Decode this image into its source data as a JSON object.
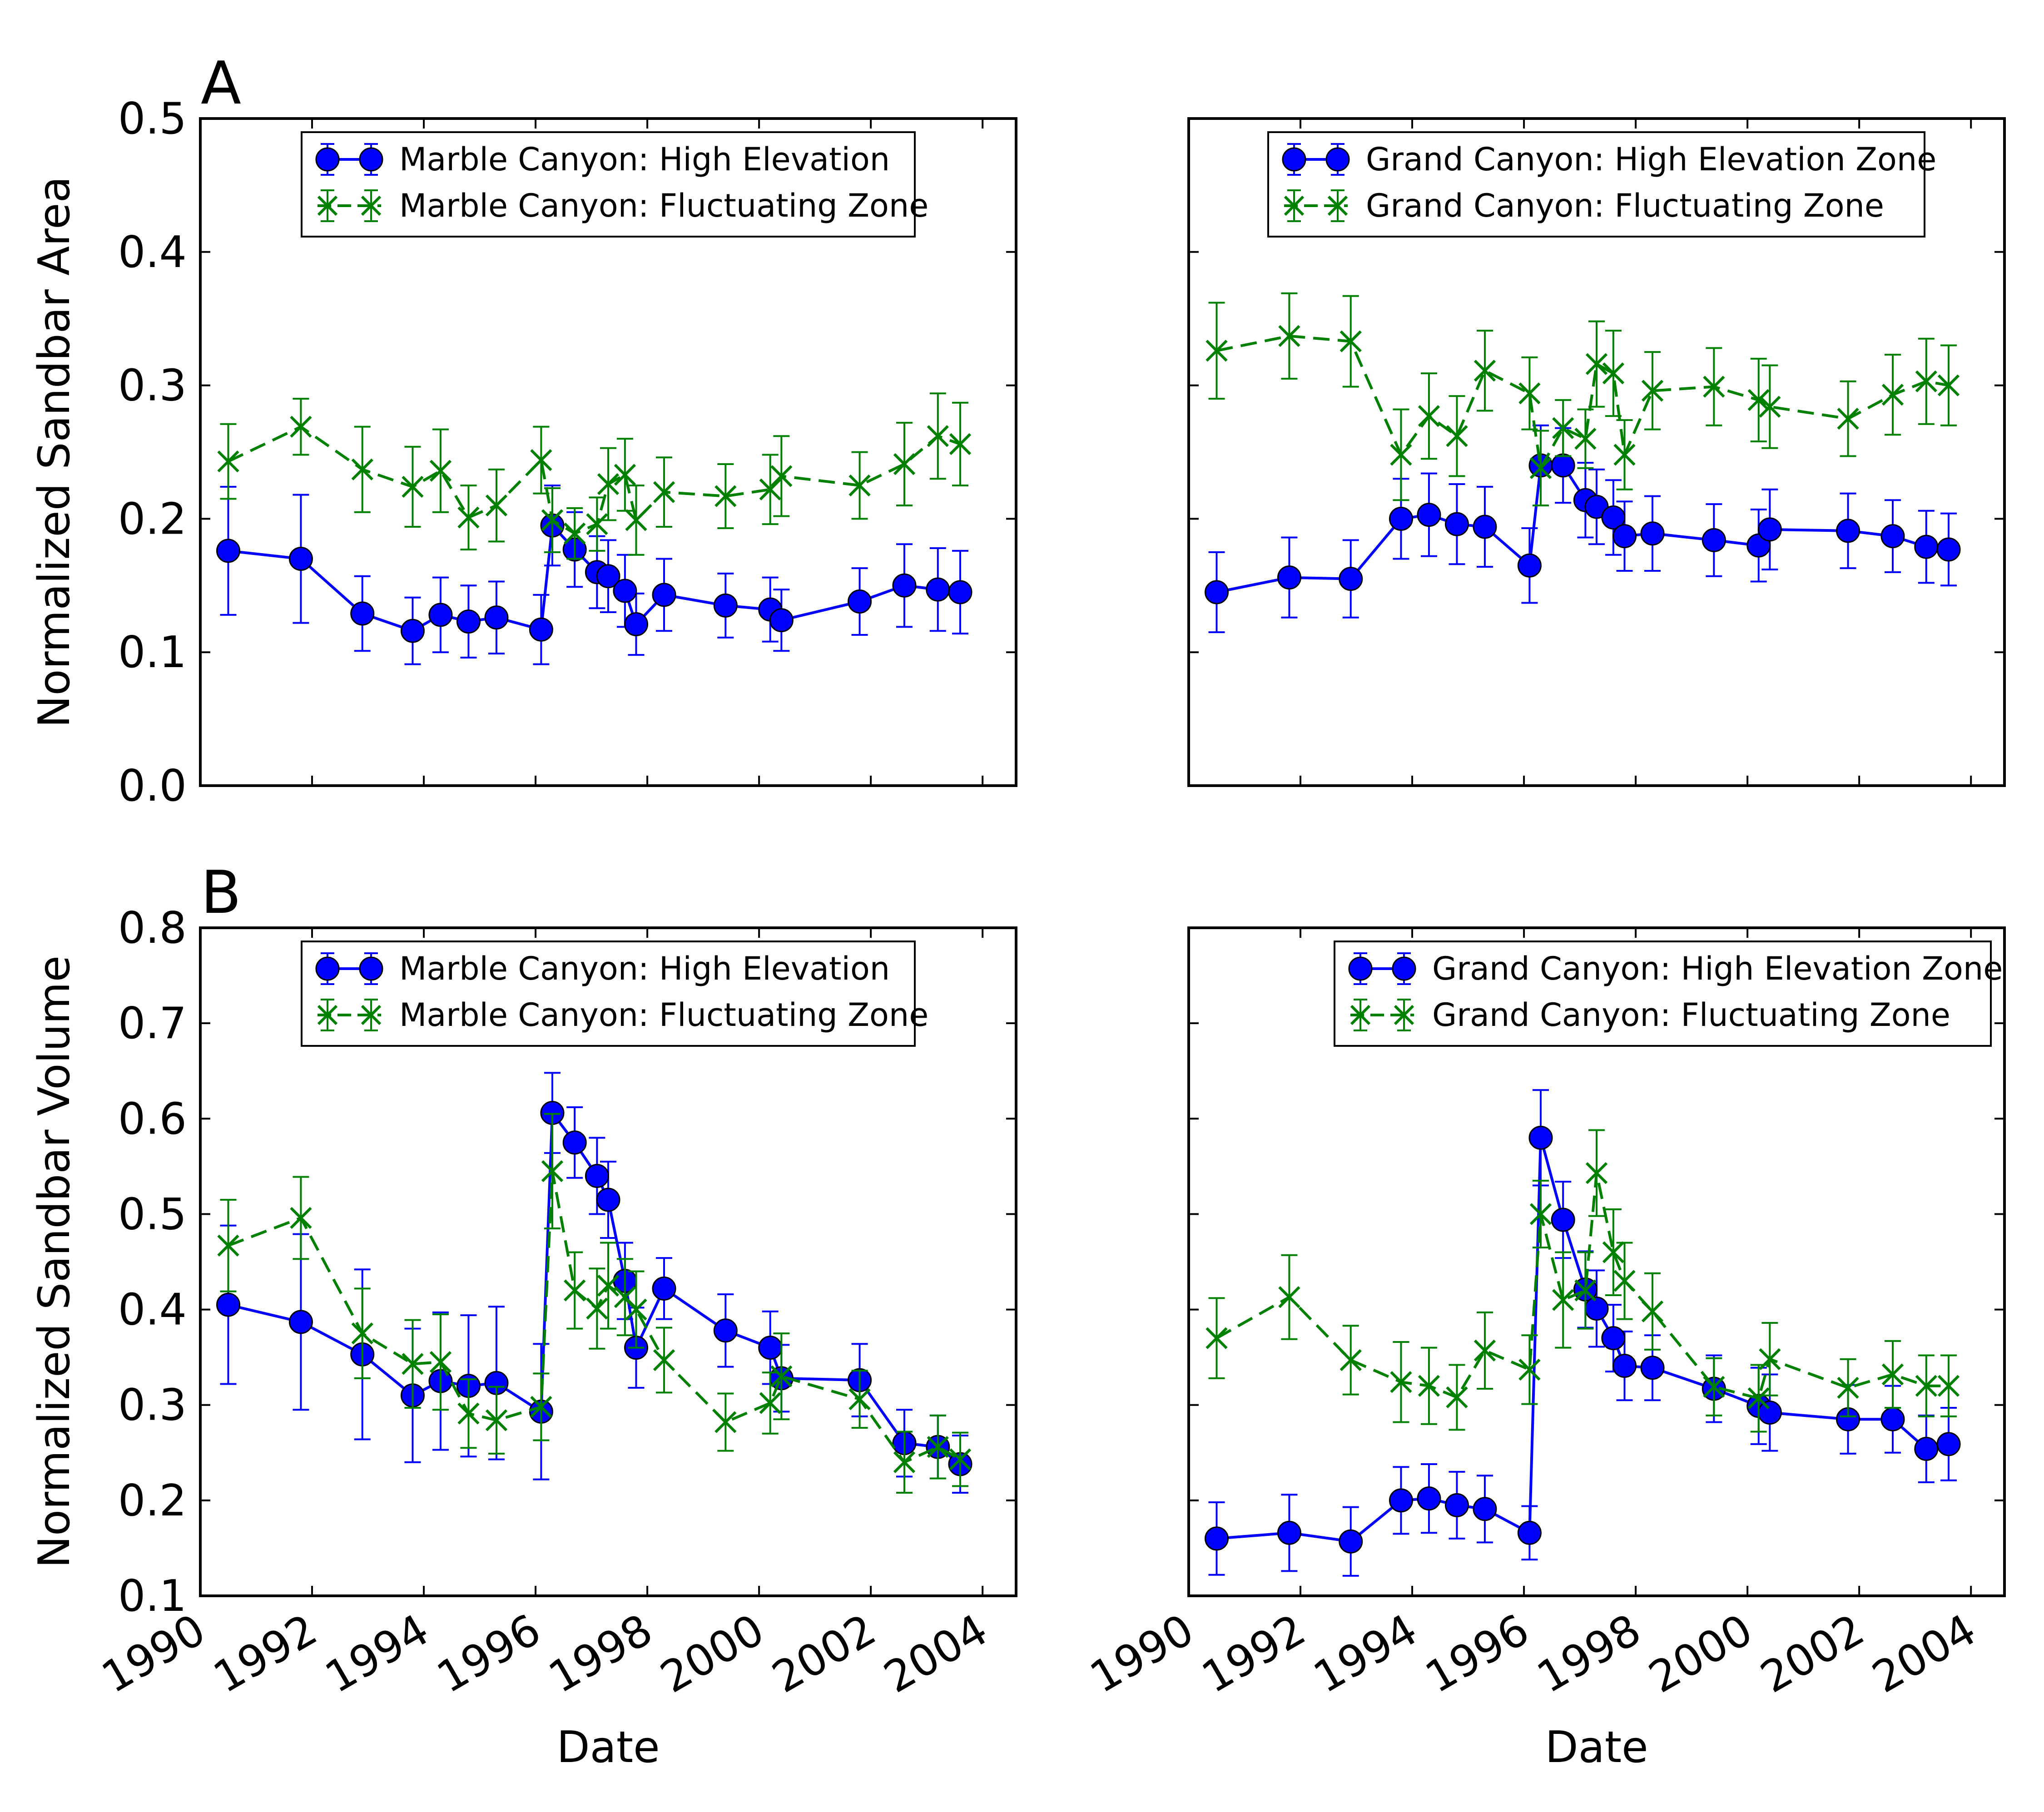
{
  "figure": {
    "panel_labels": [
      "A",
      "B"
    ],
    "xlabel": "Date"
  },
  "colors": {
    "high": "#0000ff",
    "fluct": "#008000"
  },
  "chart_data": [
    {
      "type": "line",
      "panel": "A",
      "title": "",
      "xlabel": "",
      "ylabel": "Normalized Sandbar Area",
      "xlim": [
        1990,
        2004.6
      ],
      "ylim": [
        0.0,
        0.5
      ],
      "yticks": [
        "0.0",
        "0.1",
        "0.2",
        "0.3",
        "0.4",
        "0.5"
      ],
      "xticks": [],
      "legend": "top-center",
      "series": [
        {
          "name": "Marble Canyon: High Elevation",
          "style": "high",
          "x": [
            1990.5,
            1991.8,
            1992.9,
            1993.8,
            1994.3,
            1994.8,
            1995.3,
            1996.1,
            1996.3,
            1996.7,
            1997.1,
            1997.3,
            1997.6,
            1997.8,
            1998.3,
            1999.4,
            2000.2,
            2000.4,
            2001.8,
            2002.6,
            2003.2,
            2003.6
          ],
          "y": [
            0.176,
            0.17,
            0.129,
            0.116,
            0.128,
            0.123,
            0.126,
            0.117,
            0.195,
            0.177,
            0.16,
            0.157,
            0.146,
            0.121,
            0.143,
            0.135,
            0.132,
            0.124,
            0.138,
            0.15,
            0.147,
            0.145
          ],
          "err": [
            0.048,
            0.048,
            0.028,
            0.025,
            0.028,
            0.027,
            0.027,
            0.026,
            0.03,
            0.028,
            0.027,
            0.027,
            0.027,
            0.023,
            0.027,
            0.024,
            0.024,
            0.023,
            0.025,
            0.031,
            0.031,
            0.031
          ]
        },
        {
          "name": "Marble Canyon: Fluctuating Zone",
          "style": "fluct",
          "x": [
            1990.5,
            1991.8,
            1992.9,
            1993.8,
            1994.3,
            1994.8,
            1995.3,
            1996.1,
            1996.3,
            1996.7,
            1997.1,
            1997.3,
            1997.6,
            1997.8,
            1998.3,
            1999.4,
            2000.2,
            2000.4,
            2001.8,
            2002.6,
            2003.2,
            2003.6
          ],
          "y": [
            0.243,
            0.269,
            0.237,
            0.224,
            0.236,
            0.201,
            0.21,
            0.244,
            0.199,
            0.189,
            0.196,
            0.226,
            0.233,
            0.199,
            0.22,
            0.217,
            0.222,
            0.232,
            0.225,
            0.241,
            0.262,
            0.256
          ],
          "err": [
            0.028,
            0.021,
            0.032,
            0.03,
            0.031,
            0.024,
            0.027,
            0.025,
            0.024,
            0.019,
            0.02,
            0.027,
            0.027,
            0.026,
            0.026,
            0.024,
            0.026,
            0.03,
            0.025,
            0.031,
            0.032,
            0.031
          ]
        }
      ]
    },
    {
      "type": "line",
      "panel": "A-right",
      "title": "",
      "xlabel": "",
      "ylabel": "",
      "xlim": [
        1990,
        2004.6
      ],
      "ylim": [
        0.0,
        0.5
      ],
      "yticks": [],
      "xticks": [],
      "legend": "top-center",
      "series": [
        {
          "name": "Grand Canyon: High Elevation Zone",
          "style": "high",
          "x": [
            1990.5,
            1991.8,
            1992.9,
            1993.8,
            1994.3,
            1994.8,
            1995.3,
            1996.1,
            1996.3,
            1996.7,
            1997.1,
            1997.3,
            1997.6,
            1997.8,
            1998.3,
            1999.4,
            2000.2,
            2000.4,
            2001.8,
            2002.6,
            2003.2,
            2003.6
          ],
          "y": [
            0.145,
            0.156,
            0.155,
            0.2,
            0.203,
            0.196,
            0.194,
            0.165,
            0.24,
            0.24,
            0.214,
            0.209,
            0.201,
            0.187,
            0.189,
            0.184,
            0.18,
            0.192,
            0.191,
            0.187,
            0.179,
            0.177
          ],
          "err": [
            0.03,
            0.03,
            0.029,
            0.03,
            0.031,
            0.03,
            0.03,
            0.028,
            0.03,
            0.028,
            0.028,
            0.028,
            0.028,
            0.026,
            0.028,
            0.027,
            0.027,
            0.03,
            0.028,
            0.027,
            0.027,
            0.027
          ]
        },
        {
          "name": "Grand Canyon: Fluctuating Zone",
          "style": "fluct",
          "x": [
            1990.5,
            1991.8,
            1992.9,
            1993.8,
            1994.3,
            1994.8,
            1995.3,
            1996.1,
            1996.3,
            1996.7,
            1997.1,
            1997.3,
            1997.6,
            1997.8,
            1998.3,
            1999.4,
            2000.2,
            2000.4,
            2001.8,
            2002.6,
            2003.2,
            2003.6
          ],
          "y": [
            0.326,
            0.337,
            0.333,
            0.248,
            0.277,
            0.262,
            0.311,
            0.294,
            0.238,
            0.268,
            0.26,
            0.316,
            0.309,
            0.248,
            0.296,
            0.299,
            0.289,
            0.284,
            0.275,
            0.293,
            0.303,
            0.3
          ],
          "err": [
            0.036,
            0.032,
            0.034,
            0.034,
            0.032,
            0.03,
            0.03,
            0.027,
            0.028,
            0.021,
            0.022,
            0.032,
            0.032,
            0.026,
            0.029,
            0.029,
            0.031,
            0.031,
            0.028,
            0.03,
            0.032,
            0.03
          ]
        }
      ]
    },
    {
      "type": "line",
      "panel": "B",
      "title": "",
      "xlabel": "Date",
      "ylabel": "Normalized Sandbar Volume",
      "xlim": [
        1990,
        2004.6
      ],
      "ylim": [
        0.1,
        0.8
      ],
      "yticks": [
        "0.1",
        "0.2",
        "0.3",
        "0.4",
        "0.5",
        "0.6",
        "0.7",
        "0.8"
      ],
      "xticks": [
        "1990",
        "1992",
        "1994",
        "1996",
        "1998",
        "2000",
        "2002",
        "2004"
      ],
      "legend": "top-center",
      "series": [
        {
          "name": "Marble Canyon: High Elevation",
          "style": "high",
          "x": [
            1990.5,
            1991.8,
            1992.9,
            1993.8,
            1994.3,
            1994.8,
            1995.3,
            1996.1,
            1996.3,
            1996.7,
            1997.1,
            1997.3,
            1997.6,
            1997.8,
            1998.3,
            1999.4,
            2000.2,
            2000.4,
            2001.8,
            2002.6,
            2003.2,
            2003.6
          ],
          "y": [
            0.405,
            0.387,
            0.353,
            0.31,
            0.325,
            0.32,
            0.323,
            0.293,
            0.606,
            0.575,
            0.54,
            0.515,
            0.43,
            0.36,
            0.422,
            0.378,
            0.36,
            0.328,
            0.326,
            0.26,
            0.256,
            0.238
          ],
          "err": [
            0.083,
            0.092,
            0.089,
            0.07,
            0.072,
            0.074,
            0.08,
            0.071,
            0.042,
            0.037,
            0.04,
            0.04,
            0.04,
            0.042,
            0.032,
            0.038,
            0.038,
            0.035,
            0.038,
            0.035,
            0.033,
            0.03
          ]
        },
        {
          "name": "Marble Canyon: Fluctuating Zone",
          "style": "fluct",
          "x": [
            1990.5,
            1991.8,
            1992.9,
            1993.8,
            1994.3,
            1994.8,
            1995.3,
            1996.1,
            1996.3,
            1996.7,
            1997.1,
            1997.3,
            1997.6,
            1997.8,
            1998.3,
            1999.4,
            2000.2,
            2000.4,
            2001.8,
            2002.6,
            2003.2,
            2003.6
          ],
          "y": [
            0.467,
            0.496,
            0.375,
            0.343,
            0.345,
            0.291,
            0.284,
            0.298,
            0.545,
            0.42,
            0.401,
            0.425,
            0.413,
            0.4,
            0.347,
            0.282,
            0.302,
            0.33,
            0.306,
            0.24,
            0.256,
            0.243
          ],
          "err": [
            0.048,
            0.043,
            0.047,
            0.046,
            0.05,
            0.036,
            0.035,
            0.035,
            0.06,
            0.04,
            0.042,
            0.045,
            0.04,
            0.04,
            0.034,
            0.03,
            0.032,
            0.045,
            0.03,
            0.032,
            0.033,
            0.028
          ]
        }
      ]
    },
    {
      "type": "line",
      "panel": "B-right",
      "title": "",
      "xlabel": "Date",
      "ylabel": "",
      "xlim": [
        1990,
        2004.6
      ],
      "ylim": [
        0.1,
        0.8
      ],
      "yticks": [],
      "xticks": [
        "1990",
        "1992",
        "1994",
        "1996",
        "1998",
        "2000",
        "2002",
        "2004"
      ],
      "legend": "top-right",
      "series": [
        {
          "name": "Grand Canyon: High Elevation Zone",
          "style": "high",
          "x": [
            1990.5,
            1991.8,
            1992.9,
            1993.8,
            1994.3,
            1994.8,
            1995.3,
            1996.1,
            1996.3,
            1996.7,
            1997.1,
            1997.3,
            1997.6,
            1997.8,
            1998.3,
            1999.4,
            2000.2,
            2000.4,
            2001.8,
            2002.6,
            2003.2,
            2003.6
          ],
          "y": [
            0.16,
            0.166,
            0.157,
            0.2,
            0.202,
            0.195,
            0.191,
            0.166,
            0.58,
            0.494,
            0.421,
            0.401,
            0.37,
            0.341,
            0.339,
            0.317,
            0.299,
            0.292,
            0.285,
            0.285,
            0.254,
            0.259
          ],
          "err": [
            0.038,
            0.04,
            0.036,
            0.035,
            0.036,
            0.035,
            0.035,
            0.028,
            0.05,
            0.04,
            0.04,
            0.04,
            0.035,
            0.036,
            0.034,
            0.035,
            0.04,
            0.04,
            0.036,
            0.035,
            0.035,
            0.038
          ]
        },
        {
          "name": "Grand Canyon: Fluctuating Zone",
          "style": "fluct",
          "x": [
            1990.5,
            1991.8,
            1992.9,
            1993.8,
            1994.3,
            1994.8,
            1995.3,
            1996.1,
            1996.3,
            1996.7,
            1997.1,
            1997.3,
            1997.6,
            1997.8,
            1998.3,
            1999.4,
            2000.2,
            2000.4,
            2001.8,
            2002.6,
            2003.2,
            2003.6
          ],
          "y": [
            0.37,
            0.413,
            0.347,
            0.324,
            0.32,
            0.308,
            0.357,
            0.337,
            0.5,
            0.41,
            0.42,
            0.543,
            0.46,
            0.43,
            0.398,
            0.319,
            0.307,
            0.348,
            0.318,
            0.332,
            0.32,
            0.32
          ],
          "err": [
            0.042,
            0.044,
            0.036,
            0.042,
            0.04,
            0.034,
            0.04,
            0.036,
            0.035,
            0.05,
            0.04,
            0.045,
            0.045,
            0.04,
            0.04,
            0.03,
            0.035,
            0.038,
            0.03,
            0.035,
            0.032,
            0.032
          ]
        }
      ]
    }
  ]
}
